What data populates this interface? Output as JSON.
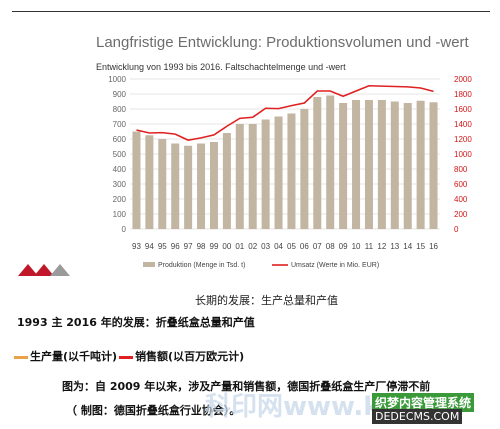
{
  "slide": {
    "title": "Langfristige Entwicklung: Produktionsvolumen und -wert",
    "subtitle": "Entwicklung von 1993 bis 2016. Faltschachtelmenge und -wert"
  },
  "chart_data": {
    "type": "bar",
    "categories": [
      "93",
      "94",
      "95",
      "96",
      "97",
      "98",
      "99",
      "00",
      "01",
      "02",
      "03",
      "04",
      "05",
      "06",
      "07",
      "08",
      "09",
      "10",
      "11",
      "12",
      "13",
      "14",
      "15",
      "16"
    ],
    "series": [
      {
        "name": "Produktion (Menge in Tsd. t)",
        "type": "bar",
        "axis": "left",
        "color": "#c2b5a1",
        "values": [
          650,
          625,
          600,
          570,
          555,
          570,
          580,
          640,
          700,
          700,
          730,
          750,
          770,
          800,
          880,
          890,
          840,
          860,
          860,
          860,
          850,
          840,
          855,
          845
        ]
      },
      {
        "name": "Umsatz (Werte in Mio. EUR)",
        "type": "line",
        "axis": "right",
        "color": "#e02020",
        "values": [
          1320,
          1280,
          1285,
          1265,
          1185,
          1215,
          1255,
          1370,
          1475,
          1490,
          1610,
          1605,
          1645,
          1680,
          1840,
          1840,
          1770,
          1840,
          1910,
          1905,
          1900,
          1895,
          1880,
          1835
        ]
      }
    ],
    "yleft": {
      "min": 0,
      "max": 1000,
      "ticks": [
        0,
        100,
        200,
        300,
        400,
        500,
        600,
        700,
        800,
        900,
        1000
      ]
    },
    "yright": {
      "min": 0,
      "max": 2000,
      "ticks": [
        0,
        200,
        400,
        600,
        800,
        1000,
        1200,
        1400,
        1600,
        1800,
        2000
      ]
    },
    "grid": true,
    "legend_position": "bottom"
  },
  "captions": {
    "figure_caption": "长期的发展：生产总量和产值",
    "heading": "1993 主 2016 年的发展：折叠纸盒总量和产值",
    "legend_line_1": "生产量(以千吨计)",
    "legend_line_2": "销售额(以百万欧元计)",
    "note_line_1": "图为：自 2009 年以来，涉及产量和销售额，德国折叠纸盒生产厂停滞不前",
    "note_line_2": "（ 制图：德国折叠纸盒行业协会）。"
  },
  "watermarks": {
    "main": "科印网www.k",
    "badge_1": "织梦内容管理系统",
    "badge_2": "DEDECMS.COM"
  },
  "colors": {
    "bar": "#c2b5a1",
    "line": "#e02020",
    "right_axis_text": "#d01818",
    "grid": "#e6e6e6"
  }
}
